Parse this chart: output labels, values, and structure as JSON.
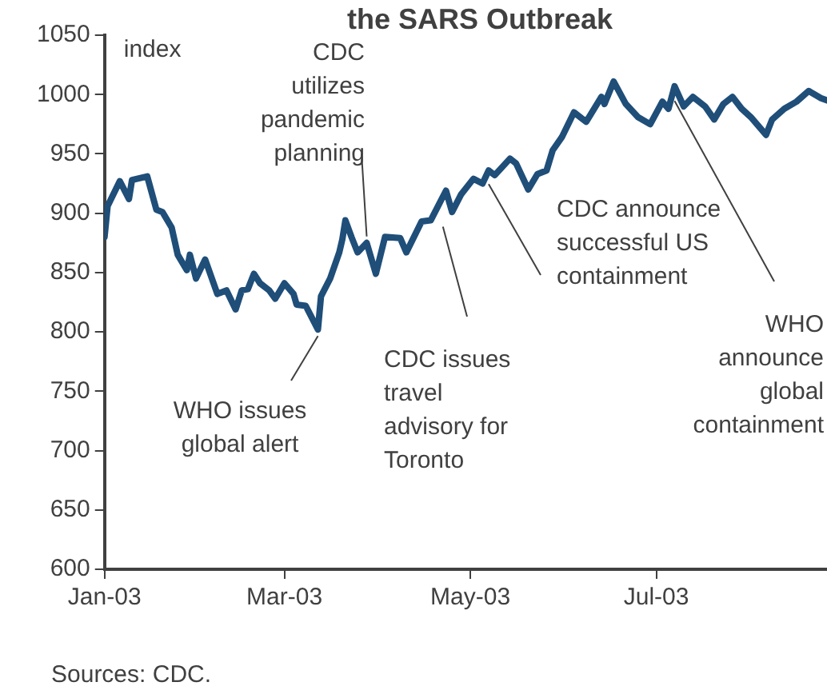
{
  "chart_data": {
    "type": "line",
    "title": "the SARS Outbreak",
    "ylabel": "index",
    "x": [
      "2003-01-01",
      "2003-01-02",
      "2003-01-06",
      "2003-01-09",
      "2003-01-10",
      "2003-01-15",
      "2003-01-18",
      "2003-01-20",
      "2003-01-23",
      "2003-01-25",
      "2003-01-28",
      "2003-01-29",
      "2003-01-31",
      "2003-02-03",
      "2003-02-07",
      "2003-02-10",
      "2003-02-13",
      "2003-02-15",
      "2003-02-17",
      "2003-02-19",
      "2003-02-21",
      "2003-02-24",
      "2003-02-26",
      "2003-03-01",
      "2003-03-04",
      "2003-03-05",
      "2003-03-08",
      "2003-03-12",
      "2003-03-13",
      "2003-03-16",
      "2003-03-19",
      "2003-03-20",
      "2003-03-21",
      "2003-03-23",
      "2003-03-25",
      "2003-03-28",
      "2003-03-31",
      "2003-04-03",
      "2003-04-08",
      "2003-04-10",
      "2003-04-15",
      "2003-04-18",
      "2003-04-23",
      "2003-04-25",
      "2003-04-28",
      "2003-05-02",
      "2003-05-05",
      "2003-05-07",
      "2003-05-09",
      "2003-05-14",
      "2003-05-16",
      "2003-05-20",
      "2003-05-23",
      "2003-05-26",
      "2003-05-28",
      "2003-05-31",
      "2003-06-04",
      "2003-06-08",
      "2003-06-13",
      "2003-06-14",
      "2003-06-17",
      "2003-06-21",
      "2003-06-25",
      "2003-06-29",
      "2003-07-03",
      "2003-07-05",
      "2003-07-07",
      "2003-07-10",
      "2003-07-13",
      "2003-07-17",
      "2003-07-20",
      "2003-07-23",
      "2003-07-26",
      "2003-07-29",
      "2003-08-01",
      "2003-08-06",
      "2003-08-08",
      "2003-08-12",
      "2003-08-16",
      "2003-08-20",
      "2003-08-24",
      "2003-08-26"
    ],
    "series": [
      {
        "color": "#1f4e79",
        "values": [
          880,
          906,
          927,
          912,
          928,
          931,
          903,
          901,
          888,
          865,
          852,
          865,
          845,
          861,
          832,
          835,
          819,
          835,
          836,
          849,
          841,
          835,
          828,
          841,
          832,
          823,
          822,
          802,
          830,
          845,
          867,
          878,
          894,
          880,
          867,
          875,
          849,
          880,
          879,
          867,
          893,
          894,
          919,
          901,
          916,
          929,
          925,
          936,
          932,
          946,
          942,
          920,
          933,
          936,
          953,
          964,
          985,
          977,
          998,
          992,
          1011,
          992,
          981,
          975,
          994,
          988,
          1007,
          990,
          998,
          990,
          979,
          992,
          998,
          988,
          981,
          966,
          979,
          988,
          994,
          1003,
          997,
          995
        ]
      }
    ],
    "xlim": [
      "2003-01-01",
      "2003-08-26"
    ],
    "xticks": [
      {
        "value": "2003-01-01",
        "label": "Jan-03"
      },
      {
        "value": "2003-03-01",
        "label": "Mar-03"
      },
      {
        "value": "2003-05-01",
        "label": "May-03"
      },
      {
        "value": "2003-07-01",
        "label": "Jul-03"
      }
    ],
    "ylim": [
      600,
      1050
    ],
    "yticks": [
      600,
      650,
      700,
      750,
      800,
      850,
      900,
      950,
      1000,
      1050
    ],
    "grid": false,
    "legend": false,
    "marker": "none",
    "line_style": "solid",
    "annotations": [
      {
        "text": "WHO issues global alert",
        "x": "2003-03-12",
        "y": 802
      },
      {
        "text": "CDC utilizes pandemic planning",
        "x": "2003-03-28",
        "y": 875
      },
      {
        "text": "CDC issues travel advisory for Toronto",
        "x": "2003-04-22",
        "y": 894
      },
      {
        "text": "CDC announce successful US containment",
        "x": "2003-05-07",
        "y": 930
      },
      {
        "text": "WHO announce global containment",
        "x": "2003-07-07",
        "y": 1000
      },
      "Sources: CDC."
    ]
  }
}
